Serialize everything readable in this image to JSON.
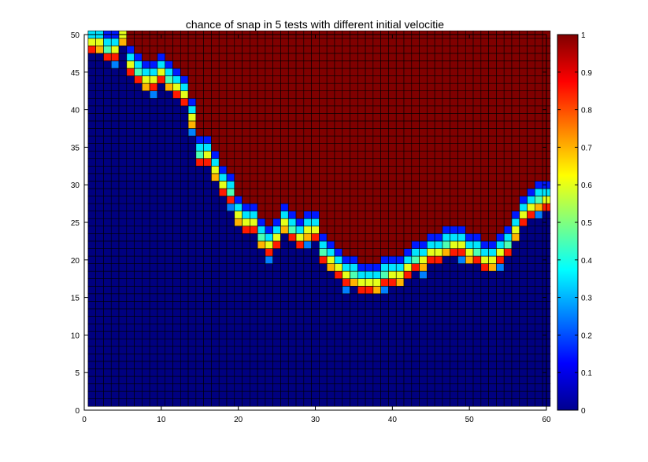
{
  "chart_data": {
    "type": "heatmap",
    "title": "chance of snap in 5 tests with different initial velocitie",
    "xlabel": "",
    "ylabel": "",
    "x_range": [
      1,
      60
    ],
    "y_range": [
      1,
      50
    ],
    "xlim": [
      0,
      60
    ],
    "ylim": [
      0,
      50
    ],
    "xticks": [
      0,
      10,
      20,
      30,
      40,
      50,
      60
    ],
    "yticks": [
      0,
      5,
      10,
      15,
      20,
      25,
      30,
      35,
      40,
      45,
      50
    ],
    "colorbar": {
      "range": [
        0,
        1
      ],
      "ticks": [
        0,
        0.1,
        0.2,
        0.3,
        0.4,
        0.5,
        0.6,
        0.7,
        0.8,
        0.9,
        1
      ],
      "colormap": "jet"
    },
    "boundary_y_by_x": [
      48,
      48,
      47,
      47,
      49,
      45,
      44,
      43,
      43,
      44,
      43,
      42,
      41,
      38,
      33,
      33,
      31,
      29,
      28,
      25,
      24,
      24,
      22,
      21,
      22,
      24,
      23,
      22,
      23,
      23,
      20,
      19,
      18,
      17,
      17,
      16,
      16,
      16,
      17,
      17,
      17,
      18,
      19,
      19,
      20,
      20,
      21,
      21,
      21,
      20,
      20,
      19,
      19,
      20,
      21,
      23,
      25,
      26,
      27,
      27
    ],
    "bright_row_offsets": [
      0,
      1,
      2,
      3
    ],
    "bright_row_values": [
      0.85,
      0.6,
      0.35,
      0.15
    ],
    "grid_colors": {
      "bright": "#000000",
      "dark": "#1a1a1a"
    }
  }
}
